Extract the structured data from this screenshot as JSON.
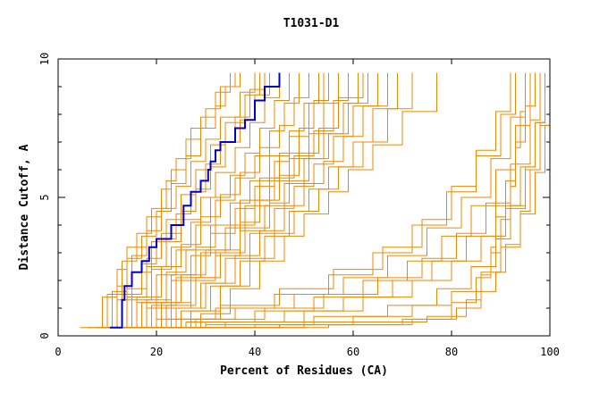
{
  "chart_data": {
    "type": "line",
    "title": "T1031-D1",
    "xlabel": "Percent of Residues (CA)",
    "ylabel": "Distance Cutoff, A",
    "xlim": [
      0,
      100
    ],
    "ylim": [
      0,
      10
    ],
    "x_ticks": [
      "0",
      "20",
      "40",
      "60",
      "80",
      "100"
    ],
    "y_ticks": [
      "0",
      "5",
      "10"
    ],
    "grid": false,
    "colors": {
      "highlight": "#0000cc",
      "others": "#ee8800",
      "axis": "#000000"
    },
    "highlight_series": {
      "x": [
        10.5,
        13,
        13,
        13.5,
        15,
        17,
        18.5,
        20,
        23,
        25.5,
        25.5,
        27,
        29,
        30.5,
        31,
        32,
        33,
        36,
        38,
        40,
        42,
        45
      ],
      "y": [
        0.3,
        0.8,
        1.3,
        1.8,
        2.3,
        2.7,
        3.2,
        3.5,
        4.0,
        4.4,
        4.7,
        5.2,
        5.6,
        6.0,
        6.3,
        6.7,
        7.0,
        7.5,
        7.8,
        8.5,
        9.0,
        9.5
      ]
    },
    "series": [
      {
        "x": [
          4.5,
          10,
          13,
          16,
          19,
          22,
          24,
          27,
          30,
          33,
          36
        ],
        "y": [
          0.3,
          1.5,
          2.7,
          3.7,
          4.6,
          5.6,
          6.4,
          7.5,
          8.2,
          9.0,
          9.5
        ]
      },
      {
        "x": [
          6,
          9,
          12,
          14,
          18,
          21,
          23,
          26,
          29,
          32,
          35
        ],
        "y": [
          0.3,
          1.4,
          2.4,
          3.2,
          4.3,
          5.3,
          6.0,
          7.1,
          7.9,
          8.8,
          9.5
        ]
      },
      {
        "x": [
          8,
          11,
          14,
          17,
          20,
          23,
          26,
          29,
          32,
          34,
          37
        ],
        "y": [
          0.3,
          1.6,
          2.8,
          3.6,
          4.5,
          5.5,
          6.5,
          7.5,
          8.3,
          9.0,
          9.5
        ]
      },
      {
        "x": [
          9,
          12,
          15,
          19,
          22,
          25,
          28,
          31,
          34,
          38,
          41
        ],
        "y": [
          0.3,
          1.3,
          2.3,
          3.4,
          4.2,
          5.1,
          6.0,
          6.9,
          7.7,
          8.7,
          9.5
        ]
      },
      {
        "x": [
          10,
          13,
          17,
          20,
          24,
          27,
          30,
          33,
          36,
          39,
          42
        ],
        "y": [
          0.3,
          1.5,
          2.6,
          3.5,
          4.4,
          5.2,
          6.2,
          7.0,
          7.9,
          8.9,
          9.5
        ]
      },
      {
        "x": [
          10,
          14,
          18,
          22,
          25,
          29,
          32,
          36,
          39,
          42,
          45
        ],
        "y": [
          0.3,
          1.4,
          2.5,
          3.4,
          4.2,
          5.0,
          5.9,
          6.8,
          7.7,
          8.6,
          9.5
        ]
      },
      {
        "x": [
          11,
          15,
          19,
          23,
          27,
          31,
          35,
          38,
          41,
          44,
          47
        ],
        "y": [
          0.3,
          1.3,
          2.4,
          3.2,
          4.1,
          5.0,
          5.8,
          6.6,
          7.5,
          8.5,
          9.5
        ]
      },
      {
        "x": [
          11,
          16,
          20,
          24,
          28,
          32,
          36,
          40,
          43,
          46,
          49
        ],
        "y": [
          0.3,
          1.2,
          2.2,
          3.1,
          4.0,
          4.9,
          5.7,
          6.5,
          7.4,
          8.4,
          9.5
        ]
      },
      {
        "x": [
          12,
          16,
          21,
          25,
          29,
          33,
          37,
          41,
          45,
          48,
          51
        ],
        "y": [
          0.3,
          1.4,
          2.5,
          3.3,
          4.3,
          5.1,
          5.9,
          6.8,
          7.6,
          8.6,
          9.5
        ]
      },
      {
        "x": [
          12,
          17,
          22,
          26,
          31,
          35,
          39,
          43,
          47,
          50,
          53
        ],
        "y": [
          0.3,
          1.2,
          2.3,
          3.1,
          4.0,
          4.8,
          5.6,
          6.5,
          7.4,
          8.4,
          9.5
        ]
      },
      {
        "x": [
          13,
          18,
          23,
          28,
          32,
          37,
          41,
          45,
          49,
          52,
          55
        ],
        "y": [
          0.3,
          1.3,
          2.2,
          3.2,
          4.0,
          4.9,
          5.7,
          6.6,
          7.5,
          8.5,
          9.5
        ]
      },
      {
        "x": [
          13,
          19,
          24,
          29,
          34,
          38,
          43,
          47,
          51,
          54,
          57
        ],
        "y": [
          0.3,
          1.1,
          2.1,
          3.0,
          3.9,
          4.7,
          5.6,
          6.4,
          7.3,
          8.4,
          9.5
        ]
      },
      {
        "x": [
          14,
          20,
          25,
          30,
          35,
          40,
          44,
          48,
          52,
          56,
          59
        ],
        "y": [
          0.3,
          1.2,
          2.2,
          3.1,
          4.0,
          4.9,
          5.7,
          6.5,
          7.4,
          8.5,
          9.5
        ]
      },
      {
        "x": [
          14,
          21,
          27,
          32,
          37,
          42,
          46,
          50,
          54,
          58,
          61
        ],
        "y": [
          0.3,
          1.0,
          2.0,
          2.9,
          3.8,
          4.7,
          5.5,
          6.4,
          7.3,
          8.4,
          9.5
        ]
      },
      {
        "x": [
          15,
          22,
          28,
          33,
          38,
          43,
          47,
          51,
          55,
          59,
          63
        ],
        "y": [
          0.3,
          1.1,
          2.1,
          3.0,
          3.9,
          4.8,
          5.6,
          6.4,
          7.3,
          8.4,
          9.5
        ]
      },
      {
        "x": [
          16,
          23,
          29,
          34,
          39,
          44,
          48,
          52,
          56,
          60,
          65
        ],
        "y": [
          0.3,
          1.0,
          1.9,
          2.8,
          3.7,
          4.6,
          5.4,
          6.2,
          7.2,
          8.3,
          9.5
        ]
      },
      {
        "x": [
          17,
          24,
          30,
          36,
          41,
          46,
          50,
          54,
          58,
          62,
          67
        ],
        "y": [
          0.3,
          1.0,
          1.9,
          2.9,
          3.8,
          4.7,
          5.5,
          6.3,
          7.2,
          8.3,
          9.5
        ]
      },
      {
        "x": [
          18,
          25,
          31,
          37,
          42,
          47,
          51,
          55,
          60,
          64,
          69
        ],
        "y": [
          0.3,
          0.9,
          1.8,
          2.7,
          3.6,
          4.5,
          5.3,
          6.1,
          7.0,
          8.2,
          9.5
        ]
      },
      {
        "x": [
          20,
          27,
          33,
          39,
          44,
          48,
          53,
          57,
          62,
          67,
          72
        ],
        "y": [
          0.3,
          0.9,
          1.8,
          2.8,
          3.7,
          4.5,
          5.3,
          6.1,
          7.0,
          8.2,
          9.5
        ]
      },
      {
        "x": [
          22,
          29,
          35,
          41,
          46,
          50,
          55,
          59,
          64,
          70,
          77
        ],
        "y": [
          0.3,
          0.8,
          1.7,
          2.7,
          3.6,
          4.4,
          5.2,
          6.0,
          6.9,
          8.1,
          9.5
        ]
      },
      {
        "x": [
          8,
          12,
          15,
          18,
          21,
          24,
          27,
          30,
          33,
          37,
          40
        ],
        "y": [
          0.3,
          1.8,
          2.9,
          3.8,
          4.6,
          5.4,
          6.3,
          7.1,
          7.9,
          8.8,
          9.5
        ]
      },
      {
        "x": [
          11,
          14,
          18,
          21,
          25,
          28,
          31,
          34,
          37,
          40,
          43
        ],
        "y": [
          0.3,
          1.7,
          2.8,
          3.7,
          4.5,
          5.3,
          6.1,
          7.0,
          7.8,
          8.7,
          9.5
        ]
      },
      {
        "x": [
          12,
          18,
          23,
          27,
          31,
          36,
          40,
          44,
          47,
          51,
          54
        ],
        "y": [
          0.3,
          1.0,
          2.0,
          2.9,
          3.7,
          4.6,
          5.4,
          6.3,
          7.2,
          8.4,
          9.5
        ]
      },
      {
        "x": [
          15,
          21,
          27,
          32,
          37,
          41,
          45,
          49,
          53,
          57,
          62
        ],
        "y": [
          0.3,
          1.2,
          2.1,
          3.1,
          4.1,
          4.9,
          5.8,
          6.6,
          7.5,
          8.6,
          9.5
        ]
      },
      {
        "x": [
          10,
          20,
          32,
          44,
          55,
          64,
          72,
          79,
          85,
          90,
          93
        ],
        "y": [
          0.3,
          0.6,
          1.0,
          1.5,
          2.2,
          3.0,
          4.0,
          5.2,
          6.5,
          8.0,
          9.5
        ]
      },
      {
        "x": [
          12,
          24,
          36,
          48,
          58,
          67,
          75,
          82,
          88,
          92,
          95
        ],
        "y": [
          0.3,
          0.6,
          1.0,
          1.5,
          2.1,
          2.9,
          3.9,
          5.0,
          6.4,
          7.9,
          9.5
        ]
      },
      {
        "x": [
          14,
          28,
          42,
          54,
          65,
          74,
          81,
          87,
          92,
          96,
          98
        ],
        "y": [
          0.3,
          0.6,
          1.0,
          1.5,
          2.1,
          2.8,
          3.7,
          4.8,
          6.2,
          7.8,
          9.5
        ]
      },
      {
        "x": [
          11,
          26,
          40,
          52,
          62,
          71,
          78,
          84,
          89,
          93,
          96
        ],
        "y": [
          0.3,
          0.5,
          0.9,
          1.4,
          2.0,
          2.7,
          3.6,
          4.7,
          6.0,
          7.6,
          9.5
        ]
      },
      {
        "x": [
          13,
          30,
          46,
          58,
          68,
          76,
          83,
          89,
          94,
          97,
          99
        ],
        "y": [
          0.3,
          0.5,
          0.9,
          1.4,
          2.0,
          2.7,
          3.6,
          4.7,
          6.1,
          7.7,
          9.5
        ]
      },
      {
        "x": [
          16,
          34,
          50,
          62,
          72,
          80,
          86,
          91,
          95,
          98,
          100
        ],
        "y": [
          0.3,
          0.5,
          0.9,
          1.4,
          2.0,
          2.7,
          3.6,
          4.6,
          6.0,
          7.6,
          9.5
        ]
      },
      {
        "x": [
          12,
          22,
          33,
          45,
          56,
          66,
          74,
          80,
          85,
          89,
          92
        ],
        "y": [
          0.3,
          0.6,
          1.1,
          1.7,
          2.4,
          3.2,
          4.2,
          5.4,
          6.7,
          8.1,
          9.5
        ]
      },
      {
        "x": [
          18,
          40,
          60,
          72,
          80,
          86,
          90,
          94,
          97,
          99,
          100
        ],
        "y": [
          0.3,
          0.4,
          0.7,
          1.1,
          1.6,
          2.3,
          3.2,
          4.4,
          5.9,
          7.6,
          9.5
        ]
      },
      {
        "x": [
          10,
          30,
          52,
          67,
          77,
          84,
          89,
          92,
          95,
          97,
          99
        ],
        "y": [
          0.3,
          0.4,
          0.7,
          1.1,
          1.7,
          2.5,
          3.5,
          4.7,
          6.1,
          7.7,
          9.5
        ]
      },
      {
        "x": [
          20,
          50,
          75,
          83,
          86,
          88,
          89,
          91,
          93,
          95,
          97
        ],
        "y": [
          0.3,
          0.5,
          0.7,
          1.3,
          2.2,
          3.2,
          4.3,
          5.6,
          7.0,
          8.3,
          9.5
        ]
      },
      {
        "x": [
          15,
          45,
          70,
          80,
          85,
          88,
          90,
          92,
          93,
          94,
          95
        ],
        "y": [
          0.3,
          0.4,
          0.6,
          1.2,
          2.1,
          3.0,
          4.2,
          5.4,
          6.8,
          8.1,
          9.5
        ]
      },
      {
        "x": [
          22,
          55,
          72,
          81,
          86,
          89,
          91,
          94,
          96,
          98,
          99
        ],
        "y": [
          0.3,
          0.4,
          0.6,
          1.0,
          1.6,
          2.3,
          3.3,
          4.5,
          6.0,
          7.7,
          9.5
        ]
      }
    ]
  }
}
